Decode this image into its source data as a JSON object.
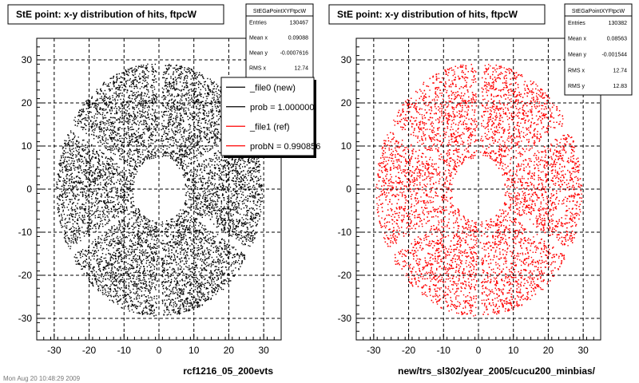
{
  "timestamp": "Mon Aug 20 10:48:29 2009",
  "chart_data": [
    {
      "type": "scatter",
      "title": "StE point: x-y distribution of hits, ftpcW",
      "xlabel": "rcf1216_05_200evts",
      "ylabel": "",
      "xlim": [
        -35,
        35
      ],
      "ylim": [
        -35,
        35
      ],
      "xticks": [
        -30,
        -20,
        -10,
        0,
        10,
        20,
        30
      ],
      "yticks": [
        -30,
        -20,
        -10,
        0,
        10,
        20,
        30
      ],
      "grid": true,
      "marker_color": "#000000",
      "distribution": {
        "inner_radius": 7.5,
        "outer_radius": 29.5,
        "sector_gaps_deg": [
          30,
          90,
          150,
          210,
          270,
          330
        ]
      },
      "stats": {
        "title": "StEGaPointXYFtpcW",
        "rows": [
          {
            "label": "Entries",
            "value": "130467"
          },
          {
            "label": "Mean x",
            "value": "0.09088"
          },
          {
            "label": "Mean y",
            "value": "-0.0007616"
          },
          {
            "label": "RMS x",
            "value": "12.74"
          },
          {
            "label": "RMS y",
            "value": "12.83"
          }
        ]
      },
      "legend": {
        "placement": "top-right",
        "entries": [
          {
            "label": "_file0 (new)",
            "color": "#000000"
          },
          {
            "label": "prob = 1.000000",
            "color": "#000000"
          },
          {
            "label": "_file1 (ref)",
            "color": "#ff0000"
          },
          {
            "label": "probN = 0.990856",
            "color": "#ff0000"
          }
        ]
      }
    },
    {
      "type": "scatter",
      "title": "StE point: x-y distribution of hits, ftpcW",
      "xlabel": "new/trs_sl302/year_2005/cucu200_minbias/",
      "ylabel": "",
      "xlim": [
        -35,
        35
      ],
      "ylim": [
        -35,
        35
      ],
      "xticks": [
        -30,
        -20,
        -10,
        0,
        10,
        20,
        30
      ],
      "yticks": [
        -30,
        -20,
        -10,
        0,
        10,
        20,
        30
      ],
      "grid": true,
      "marker_color": "#ff0000",
      "distribution": {
        "inner_radius": 7.5,
        "outer_radius": 29.5,
        "sector_gaps_deg": [
          30,
          90,
          150,
          210,
          270,
          330
        ]
      },
      "stats": {
        "title": "StEGaPointXYFtpcW",
        "rows": [
          {
            "label": "Entries",
            "value": "130382"
          },
          {
            "label": "Mean x",
            "value": "0.08563"
          },
          {
            "label": "Mean y",
            "value": "-0.001544"
          },
          {
            "label": "RMS x",
            "value": "12.74"
          },
          {
            "label": "RMS y",
            "value": "12.83"
          }
        ]
      }
    }
  ]
}
